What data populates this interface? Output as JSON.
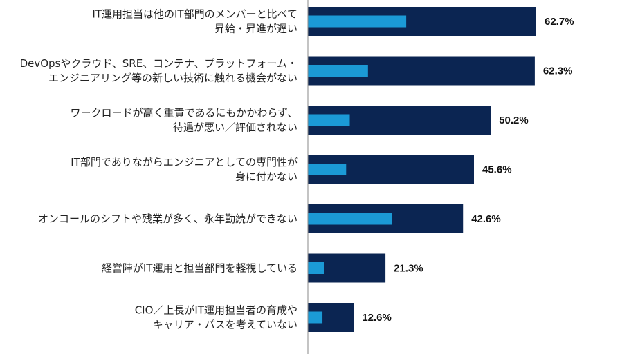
{
  "chart_data": {
    "type": "bar",
    "orientation": "horizontal",
    "title": "",
    "xlabel": "",
    "ylabel": "",
    "grid": false,
    "legend": "none",
    "xlim": [
      0,
      100
    ],
    "categories": [
      [
        "IT運用担当は他のIT部門のメンバーと比べて",
        "昇給・昇進が遅い"
      ],
      [
        "DevOpsやクラウド、SRE、コンテナ、プラットフォーム・",
        "エンジニアリング等の新しい技術に触れる機会がない"
      ],
      [
        "ワークロードが高く重責であるにもかかわらず、",
        "待遇が悪い／評価されない"
      ],
      [
        "IT部門でありながらエンジニアとしての専門性が",
        "身に付かない"
      ],
      [
        "オンコールのシフトや残業が多く、永年勤続ができない"
      ],
      [
        "経営陣がIT運用と担当部門を軽視している"
      ],
      [
        "CIO／上長がIT運用担当者の育成や",
        "キャリア・パスを考えていない"
      ]
    ],
    "series": [
      {
        "values": [
          62.7,
          62.3,
          50.2,
          45.6,
          42.6,
          21.3,
          12.6
        ]
      },
      {
        "values": [
          27.0,
          16.5,
          11.5,
          10.5,
          23.0,
          4.5,
          4.0
        ]
      }
    ],
    "value_labels": [
      "62.7%",
      "62.3%",
      "50.2%",
      "45.6%",
      "42.6%",
      "21.3%",
      "12.6%"
    ],
    "colors": {
      "outer": "#0b2552",
      "inner": "#1b9ad6",
      "axis": "#888888",
      "text": "#222222"
    }
  }
}
